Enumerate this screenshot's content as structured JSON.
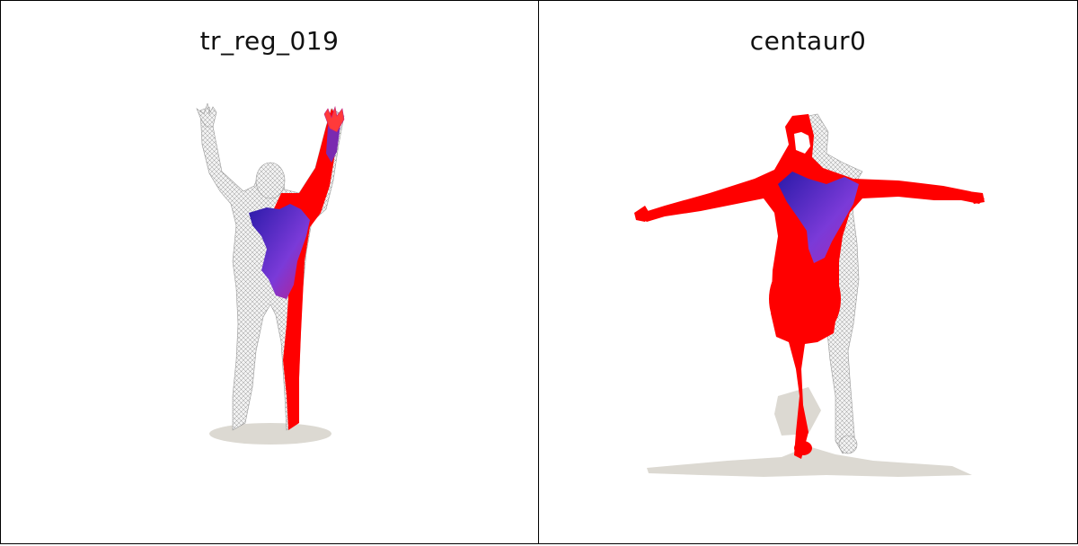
{
  "panels": [
    {
      "title": "tr_reg_019",
      "figure": "human-mesh-arms-raised",
      "colors": {
        "mesh": "#e8e8e8",
        "wire": "#9a9a9a",
        "highlight": "#ff0000",
        "blend": "#5a2cd0",
        "shadow": "#dcd9d2"
      }
    },
    {
      "title": "centaur0",
      "figure": "centaur-mesh-t-pose",
      "colors": {
        "mesh": "#e8e8e8",
        "wire": "#9a9a9a",
        "highlight": "#ff0000",
        "blend": "#5a2cd0",
        "shadow": "#dcd9d2"
      }
    }
  ]
}
